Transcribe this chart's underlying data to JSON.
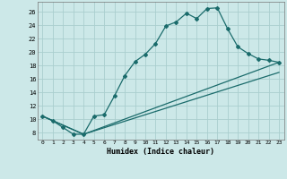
{
  "xlabel": "Humidex (Indice chaleur)",
  "ylabel": "",
  "background_color": "#cce8e8",
  "grid_color": "#aacece",
  "line_color": "#1a6b6b",
  "xlim": [
    -0.5,
    23.5
  ],
  "ylim": [
    7,
    27.5
  ],
  "yticks": [
    8,
    10,
    12,
    14,
    16,
    18,
    20,
    22,
    24,
    26
  ],
  "xticks": [
    0,
    1,
    2,
    3,
    4,
    5,
    6,
    7,
    8,
    9,
    10,
    11,
    12,
    13,
    14,
    15,
    16,
    17,
    18,
    19,
    20,
    21,
    22,
    23
  ],
  "series1_x": [
    0,
    1,
    2,
    3,
    4,
    5,
    6,
    7,
    8,
    9,
    10,
    11,
    12,
    13,
    14,
    15,
    16,
    17,
    18,
    19,
    20,
    21,
    22,
    23
  ],
  "series1_y": [
    10.5,
    9.8,
    8.8,
    7.8,
    7.8,
    10.5,
    10.7,
    13.5,
    16.5,
    18.6,
    19.7,
    21.3,
    23.9,
    24.5,
    25.8,
    25.0,
    26.5,
    26.6,
    23.5,
    20.8,
    19.8,
    19.0,
    18.8,
    18.5
  ],
  "series2_x": [
    0,
    4,
    23
  ],
  "series2_y": [
    10.5,
    7.8,
    17.0
  ],
  "series3_x": [
    0,
    4,
    23
  ],
  "series3_y": [
    10.5,
    7.8,
    18.5
  ]
}
